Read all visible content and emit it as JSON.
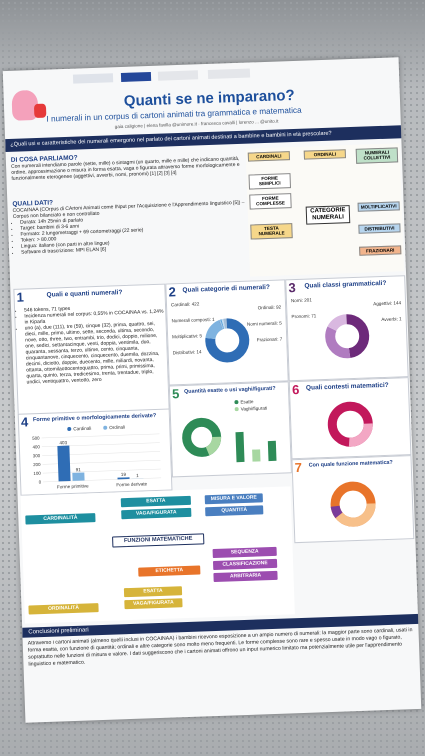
{
  "header": {
    "title": "Quanti se ne imparano?",
    "subtitle": "I numerali in un corpus di cartoni animati tra grammatica e matematica",
    "authors": "gaia caligione | elena favilla @unimore.it · francesca cavalli | lorenzo ... @unito.it"
  },
  "question": "¿Quali usi e caratteristiche dei numerali emergono nel parlato dei cartoni animati destinati a bambine e bambini in età prescolare?",
  "intro": {
    "heading": "DI COSA PARLIAMO?",
    "text": "Con numerali intendiamo parole (sette, mille) o sintagmi (un quarto, mille e mille) che indicano quantità, ordine, approssimazione o misura in forma esatta, vaga o figurata attraverso forme morfologicamente e funzionalmente eterogenee (aggettivi, avverbi, nomi, pronomi) [1] [2] [3] [4]"
  },
  "data_section": {
    "heading": "QUALI DATI?",
    "text": "COCAINAA (COrpus di CArtoni Animati come INput per l'Acquisizione e l'Apprendimento linguistico [5]) – Corpus non bilanciato e non controllato",
    "bullets": [
      "Durata: 14h 25min di parlato",
      "Target: bambini di 3-6 anni",
      "Formato: 2 lungometraggi + 69 cortometraggi (22 serie)",
      "Token: > 80.000",
      "Lingua: italiano (con parti in altre lingue)",
      "Software di trascrizione: MPI ELAN [6]"
    ]
  },
  "diagram": {
    "center": "CATEGORIE NUMERALI",
    "nodes": [
      "CARDINALI",
      "ORDINALI",
      "NUMERALI COLLETTIVI",
      "FORME SEMPLICI",
      "FORME COMPLESSE",
      "TESTA NUMERALE",
      "MOLTIPLICATIVI",
      "DISTRIBUTIVI",
      "FRAZIONARI"
    ]
  },
  "section1": {
    "number": "1",
    "title": "Quali e quanti numerali?",
    "bullets": [
      "546 tokens, 71 types",
      "Incidenza numerali nel corpus: 0,55% in COCAINAA vs. 1,24% in Kiparla",
      "uno (a), due (111), tre (59), cinque (32), prima, quattro, sei, dieci, mille, primo, ultimo, sette, seconda, ultima, secondo, nove, otto, three, two, entrambi, trio, dodici, doppio, milione, one, sedici, settantacinque, venti, doppia, ventimila, duo, quaranta, sessanta, terzo, ultime, cento, cinquanta, cinquantanove, cinquecento, cinquecento, duemila, dozzina, decimi, diciotto, doppie, duecento, mille, miliardi, novanta, ottanta, ottomilaottocentoquattro, prima, primi, primissima, quarta, quinto, terza, tredicesimo, trenta, trentadue, triplo, undici, ventiquattro, ventotto, zero"
    ]
  },
  "section2": {
    "number": "2",
    "title": "Quali categorie di numerali?",
    "labels": [
      "Cardinali: 422",
      "Ordinali: 92",
      "Numerali composti: 1",
      "Nomi numerali: 5",
      "Moltiplicativi: 5",
      "Frazionari: 7",
      "Distributivi: 14"
    ],
    "values": [
      422,
      92,
      1,
      5,
      5,
      7,
      14
    ],
    "colors": [
      "#2f6db5",
      "#7fb3e0",
      "#1d3f86",
      "#9cc7ea",
      "#5aa0d8",
      "#c5ddf2",
      "#a6bfd9"
    ]
  },
  "section3": {
    "number": "3",
    "title": "Quali classi grammaticali?",
    "labels": [
      "Nomi: 201",
      "Aggettivi: 144",
      "Pronomi: 71",
      "Avverbi: 1"
    ],
    "values": [
      201,
      144,
      71,
      1
    ],
    "colors": [
      "#6d2a7a",
      "#b07cc0",
      "#d9b8e0",
      "#3c1646"
    ]
  },
  "section4": {
    "number": "4",
    "title": "Forme primitive o morfologicamente derivate?",
    "legend": [
      "Cardinali",
      "Ordinali"
    ],
    "colors": [
      "#2f6db5",
      "#7fb3e0"
    ],
    "categories": [
      "Forme primitive",
      "Forme derivate"
    ],
    "series": [
      [
        403,
        19
      ],
      [
        91,
        1
      ]
    ],
    "yticks": [
      0,
      100,
      200,
      300,
      400,
      500
    ],
    "ylim": [
      0,
      500
    ]
  },
  "section5": {
    "number": "5",
    "title": "Quantità esatte o usi vaghi/figurati?",
    "legend": [
      "Esatte",
      "Vaghi/figurati"
    ],
    "colors": [
      "#2e8b57",
      "#a7d7a1"
    ]
  },
  "section6": {
    "number": "6",
    "title": "Quali contesti matematici?"
  },
  "section7": {
    "number": "7",
    "title": "Con quale funzione matematica?"
  },
  "map": {
    "center": "FUNZIONI MATEMATICHE",
    "nodes": [
      "CARDINALITÀ",
      "ESATTA",
      "VAGA/FIGURATA",
      "MISURA E VALORE",
      "QUANTITÀ",
      "ETICHETTA",
      "SEQUENZA",
      "CLASSIFICAZIONE",
      "ARBITRARIA",
      "ORDINALITÀ",
      "ESATTA",
      "VAGA/FIGURATA"
    ]
  },
  "conclusion": {
    "heading": "Conclusioni preliminari",
    "text": "Attraverso i cartoni animati (almeno quelli inclusi in COCAINAA) i bambini ricevono esposizione a un ampio numero di numerali: la maggior parte sono cardinali, usati in forma esatta, con funzione di quantità; ordinali e altre categorie sono molto meno frequenti. Le forme complesse sono rare e spesso usate in modo vago o figurato, soprattutto nelle funzioni di misura e valore. I dati suggeriscono che i cartoni animati offrono un input numerico limitato ma potenzialmente utile per l'apprendimento linguistico e matematico."
  }
}
